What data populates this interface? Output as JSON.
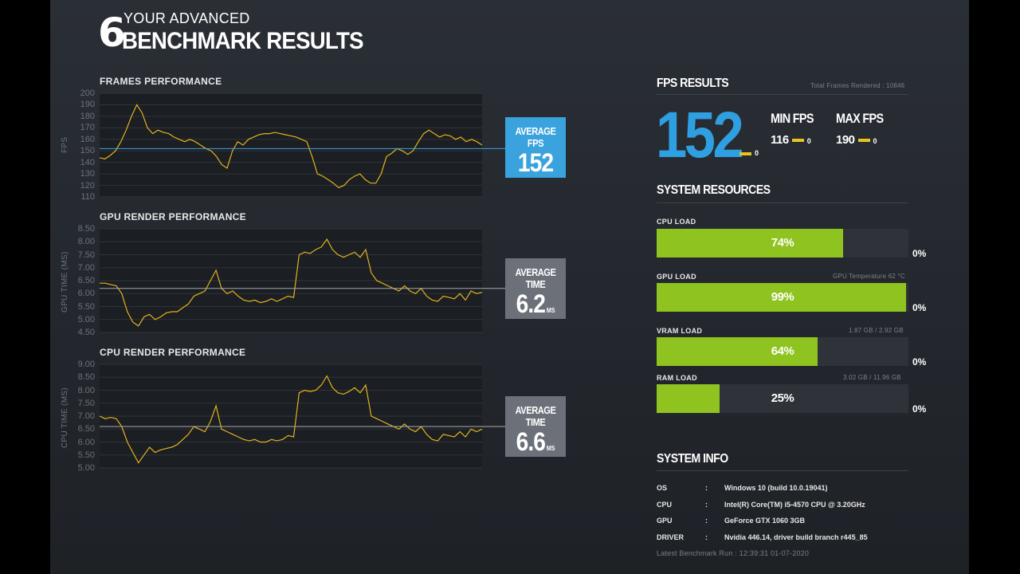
{
  "header": {
    "logo_digit": "6",
    "title_small": "YOUR ADVANCED",
    "title_big": "BENCHMARK RESULTS"
  },
  "charts": [
    {
      "title": "FRAMES PERFORMANCE",
      "ylabel": "FPS",
      "ylim": [
        110,
        200
      ],
      "yticks": [
        "200",
        "190",
        "180",
        "170",
        "160",
        "150",
        "140",
        "130",
        "120",
        "110"
      ],
      "avg_value": 152,
      "avg_color": "#3aa3de",
      "series": [
        144,
        143,
        146,
        150,
        158,
        168,
        180,
        190,
        183,
        170,
        165,
        168,
        166,
        165,
        162,
        160,
        158,
        160,
        158,
        155,
        152,
        150,
        145,
        138,
        135,
        150,
        158,
        155,
        160,
        162,
        164,
        165,
        165,
        166,
        165,
        164,
        163,
        162,
        160,
        158,
        145,
        130,
        128,
        125,
        122,
        118,
        120,
        125,
        128,
        130,
        125,
        122,
        122,
        130,
        145,
        148,
        152,
        150,
        147,
        150,
        158,
        165,
        168,
        165,
        162,
        164,
        163,
        160,
        162,
        158,
        160,
        158,
        155
      ],
      "color": "#e2b31d"
    },
    {
      "title": "GPU RENDER PERFORMANCE",
      "ylabel": "GPU TIME (MS)",
      "ylim": [
        4.5,
        8.5
      ],
      "yticks": [
        "8.50",
        "8.00",
        "7.50",
        "7.00",
        "6.50",
        "6.00",
        "5.50",
        "5.00",
        "4.50"
      ],
      "avg_value": 6.2,
      "avg_color": "#6c7078",
      "series": [
        6.4,
        6.4,
        6.35,
        6.3,
        6.0,
        5.3,
        4.9,
        4.75,
        5.1,
        5.2,
        5.0,
        5.1,
        5.25,
        5.3,
        5.3,
        5.45,
        5.6,
        5.9,
        6.0,
        6.1,
        6.5,
        6.9,
        6.2,
        6.0,
        6.1,
        5.9,
        5.75,
        5.7,
        5.75,
        5.65,
        5.7,
        5.8,
        5.7,
        5.8,
        5.9,
        5.85,
        7.5,
        7.6,
        7.55,
        7.7,
        7.8,
        8.1,
        7.7,
        7.5,
        7.4,
        7.5,
        7.6,
        7.4,
        7.7,
        6.8,
        6.5,
        6.4,
        6.3,
        6.2,
        6.1,
        6.3,
        6.1,
        6.0,
        6.2,
        5.9,
        5.75,
        5.7,
        5.9,
        5.85,
        5.8,
        6.0,
        5.75,
        6.1,
        6.0,
        6.05
      ],
      "color": "#e2b31d"
    },
    {
      "title": "CPU RENDER PERFORMANCE",
      "ylabel": "CPU TIME (MS)",
      "ylim": [
        5.0,
        9.0
      ],
      "yticks": [
        "9.00",
        "8.50",
        "8.00",
        "7.50",
        "7.00",
        "6.50",
        "6.00",
        "5.50",
        "5.00"
      ],
      "avg_value": 6.6,
      "avg_color": "#6c7078",
      "series": [
        7.0,
        6.9,
        6.95,
        6.9,
        6.6,
        6.0,
        5.6,
        5.2,
        5.5,
        5.8,
        5.6,
        5.7,
        5.75,
        5.8,
        5.9,
        6.1,
        6.3,
        6.6,
        6.5,
        6.4,
        6.8,
        7.4,
        6.5,
        6.4,
        6.3,
        6.2,
        6.1,
        6.05,
        6.1,
        6.0,
        6.0,
        6.1,
        6.05,
        6.1,
        6.25,
        6.2,
        7.9,
        8.0,
        7.95,
        8.0,
        8.2,
        8.55,
        8.1,
        7.9,
        7.85,
        7.95,
        8.1,
        7.9,
        8.2,
        7.0,
        6.9,
        6.8,
        6.7,
        6.6,
        6.5,
        6.7,
        6.5,
        6.4,
        6.6,
        6.3,
        6.1,
        6.05,
        6.3,
        6.25,
        6.2,
        6.4,
        6.2,
        6.5,
        6.4,
        6.5
      ],
      "color": "#e2b31d"
    }
  ],
  "avg_labels": {
    "fps": "AVERAGE FPS",
    "gpu": "AVERAGE TIME",
    "cpu": "AVERAGE TIME"
  },
  "avg_values": {
    "fps": "152",
    "gpu": "6.2",
    "cpu": "6.6"
  },
  "avg_unit": "MS",
  "fps_results": {
    "title": "FPS RESULTS",
    "total_frames": "Total Frames Rendered : 10846",
    "average": "152",
    "average_delta": "0",
    "min_label": "MIN FPS",
    "min_value": "116",
    "min_delta": "0",
    "max_label": "MAX FPS",
    "max_value": "190",
    "max_delta": "0"
  },
  "system_resources": {
    "title": "SYSTEM RESOURCES",
    "items": [
      {
        "label": "CPU LOAD",
        "percent": 74,
        "text": "74%",
        "info": "",
        "delta": "0%"
      },
      {
        "label": "GPU LOAD",
        "percent": 99,
        "text": "99%",
        "info": "GPU Temperature 62 °C",
        "delta": "0%"
      },
      {
        "label": "VRAM LOAD",
        "percent": 64,
        "text": "64%",
        "info": "1.87 GB / 2.92 GB",
        "delta": "0%"
      },
      {
        "label": "RAM LOAD",
        "percent": 25,
        "text": "25%",
        "info": "3.02 GB / 11.96 GB",
        "delta": "0%"
      }
    ]
  },
  "system_info": {
    "title": "SYSTEM INFO",
    "rows": [
      {
        "key": "OS",
        "value": "Windows 10 (build 10.0.19041)"
      },
      {
        "key": "CPU",
        "value": "Intel(R) Core(TM) i5-4570 CPU @ 3.20GHz"
      },
      {
        "key": "GPU",
        "value": "GeForce GTX 1060 3GB"
      },
      {
        "key": "DRIVER",
        "value": "Nvidia 446.14, driver build branch r445_85"
      }
    ],
    "separator": ":",
    "latest_run": "Latest Benchmark Run : 12:39:31 01-07-2020"
  },
  "colors": {
    "fps_blue": "#2e9fe0",
    "load_green": "#8fc31f",
    "delta_yellow": "#e9c41d"
  }
}
